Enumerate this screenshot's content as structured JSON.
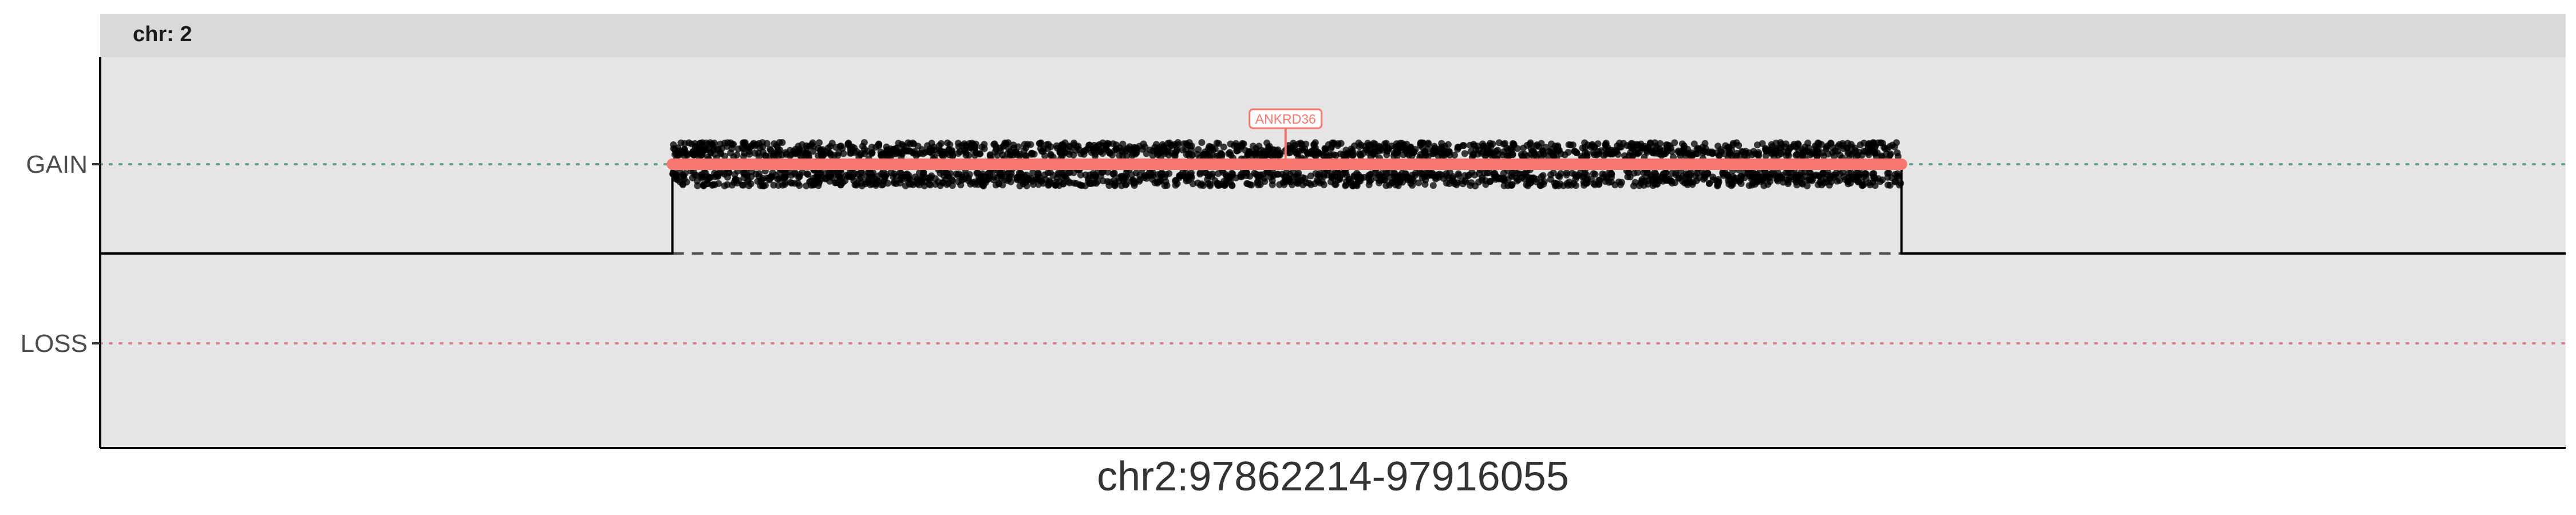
{
  "chart_data": {
    "type": "scatter",
    "facet_label": "chr: 2",
    "xlabel": "chr2:97862214-97916055",
    "ylabel": "",
    "y_categories": [
      "GAIN",
      "LOSS"
    ],
    "x_range": [
      97862214,
      97916055
    ],
    "segment": {
      "state": "GAIN",
      "start": 97874710,
      "end": 97901550
    },
    "step_line": {
      "baseline_level": 0,
      "raised_level": 1,
      "start": 97874710,
      "end": 97901550
    },
    "points": {
      "description_count": 2600,
      "y_level": "GAIN",
      "x_start": 97874710,
      "x_end": 97901550
    },
    "gene_label": {
      "name": "ANKRD36",
      "position": 97888100
    },
    "grid": false,
    "legend": "none",
    "colors": {
      "panel_background": "#e5e5e5",
      "strip_background": "#d9d9d9",
      "gain_line": "#5f9a8c",
      "loss_line": "#d9838b",
      "segment": "#f8766d",
      "points": "#000000",
      "step_line": "#000000",
      "axis_text": "#4d4d4d"
    }
  }
}
